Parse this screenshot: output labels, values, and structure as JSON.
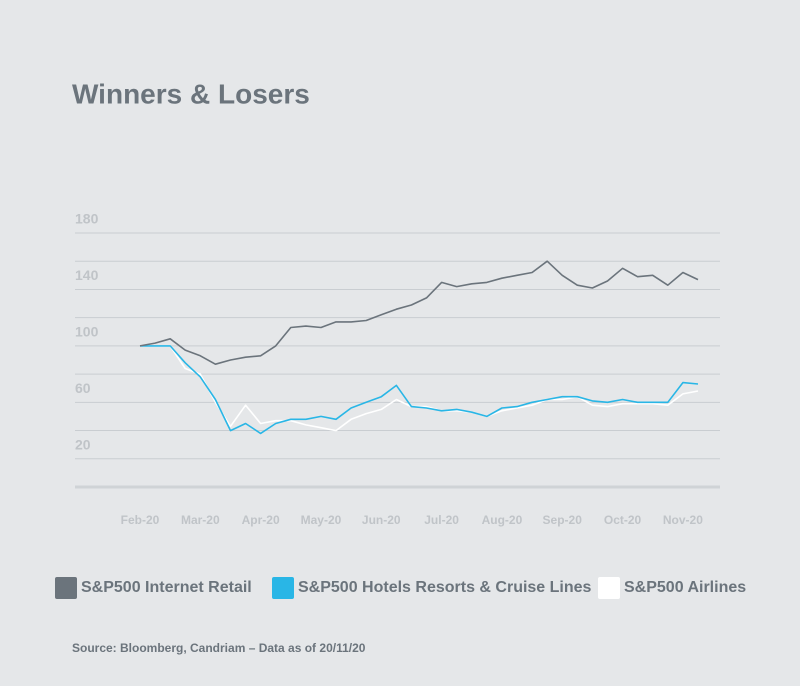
{
  "chart_data": {
    "type": "line",
    "title": "Winners & Losers",
    "categories": [
      "Feb-20",
      null,
      null,
      null,
      "Mar-20",
      null,
      null,
      null,
      "Apr-20",
      null,
      null,
      null,
      "May-20",
      null,
      null,
      null,
      "Jun-20",
      null,
      null,
      null,
      "Jul-20",
      null,
      null,
      null,
      "Aug-20",
      null,
      null,
      null,
      "Sep-20",
      null,
      null,
      null,
      "Oct-20",
      null,
      null,
      null,
      "Nov-20",
      null
    ],
    "series": [
      {
        "name": "S&P500 Internet Retail",
        "color": "#6b747c",
        "values": [
          100,
          102,
          105,
          97,
          93,
          87,
          90,
          92,
          93,
          100,
          113,
          114,
          113,
          117,
          117,
          118,
          122,
          126,
          129,
          134,
          145,
          142,
          144,
          145,
          148,
          150,
          152,
          160,
          150,
          143,
          141,
          146,
          155,
          149,
          150,
          143,
          152,
          147
        ]
      },
      {
        "name": "S&P500 Hotels Resorts & Cruise Lines",
        "color": "#29b6e6",
        "values": [
          100,
          100,
          100,
          88,
          78,
          62,
          40,
          45,
          38,
          45,
          48,
          48,
          50,
          48,
          56,
          60,
          64,
          72,
          57,
          56,
          54,
          55,
          53,
          50,
          56,
          57,
          60,
          62,
          64,
          64,
          61,
          60,
          62,
          60,
          60,
          60,
          74,
          73
        ]
      },
      {
        "name": "S&P500 Airlines",
        "color": "#ffffff",
        "values": [
          100,
          100,
          100,
          84,
          80,
          60,
          43,
          58,
          45,
          47,
          47,
          44,
          42,
          40,
          48,
          52,
          55,
          62,
          57,
          57,
          54,
          54,
          53,
          50,
          54,
          56,
          58,
          62,
          62,
          64,
          58,
          57,
          59,
          59,
          59,
          58,
          66,
          68
        ]
      }
    ],
    "ylim": [
      0,
      180
    ],
    "yticks": [
      20,
      60,
      100,
      140,
      180
    ],
    "grid": true,
    "source": "Source: Bloomberg, Candriam – Data as of 20/11/20"
  }
}
